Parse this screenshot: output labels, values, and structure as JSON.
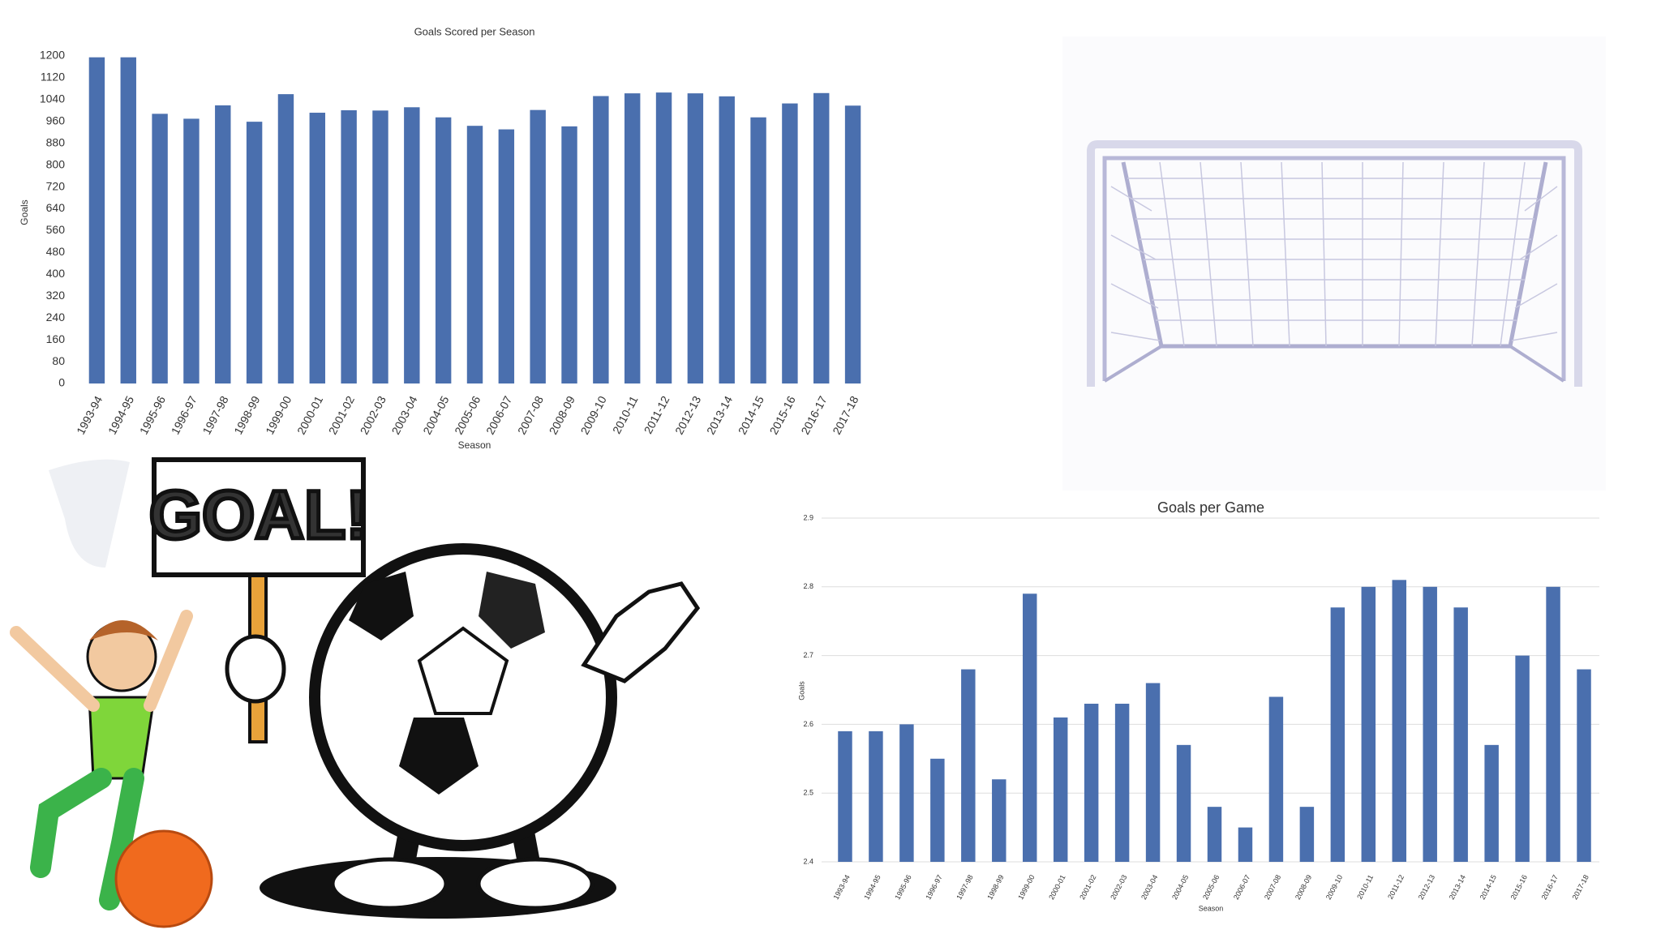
{
  "chart_data": [
    {
      "type": "bar",
      "title": "Goals Scored per Season",
      "x_label": "Season",
      "y_label": "Goals",
      "color": "#4a6fae",
      "categories": [
        "1993-94",
        "1994-95",
        "1995-96",
        "1996-97",
        "1997-98",
        "1998-99",
        "1999-00",
        "2000-01",
        "2001-02",
        "2002-03",
        "2003-04",
        "2004-05",
        "2005-06",
        "2006-07",
        "2007-08",
        "2008-09",
        "2009-10",
        "2010-11",
        "2011-12",
        "2012-13",
        "2013-14",
        "2014-15",
        "2015-16",
        "2016-17",
        "2017-18"
      ],
      "values": [
        1195,
        1195,
        988,
        970,
        1019,
        959,
        1060,
        992,
        1001,
        1000,
        1012,
        975,
        944,
        931,
        1002,
        942,
        1053,
        1063,
        1066,
        1063,
        1052,
        975,
        1026,
        1064,
        1018
      ],
      "ylim": [
        0,
        1200
      ],
      "yticks": [
        0,
        80,
        160,
        240,
        320,
        400,
        480,
        560,
        640,
        720,
        800,
        880,
        960,
        1040,
        1120,
        1200
      ],
      "grid": false
    },
    {
      "type": "bar",
      "title": "Goals per Game",
      "x_label": "Season",
      "y_label": "Goals",
      "color": "#4a6fae",
      "categories": [
        "1993-94",
        "1994-95",
        "1995-96",
        "1996-97",
        "1997-98",
        "1998-99",
        "1999-00",
        "2000-01",
        "2001-02",
        "2002-03",
        "2003-04",
        "2004-05",
        "2005-06",
        "2006-07",
        "2007-08",
        "2008-09",
        "2009-10",
        "2010-11",
        "2011-12",
        "2012-13",
        "2013-14",
        "2014-15",
        "2015-16",
        "2016-17",
        "2017-18"
      ],
      "values": [
        2.59,
        2.59,
        2.6,
        2.55,
        2.68,
        2.52,
        2.79,
        2.61,
        2.63,
        2.63,
        2.66,
        2.57,
        2.48,
        2.45,
        2.64,
        2.48,
        2.77,
        2.8,
        2.81,
        2.8,
        2.77,
        2.57,
        2.7,
        2.8,
        2.68
      ],
      "ylim": [
        2.4,
        2.9
      ],
      "yticks": [
        2.4,
        2.5,
        2.6,
        2.7,
        2.8,
        2.9
      ],
      "grid": true
    }
  ],
  "illustration": {
    "sign_text": "GOAL!"
  }
}
